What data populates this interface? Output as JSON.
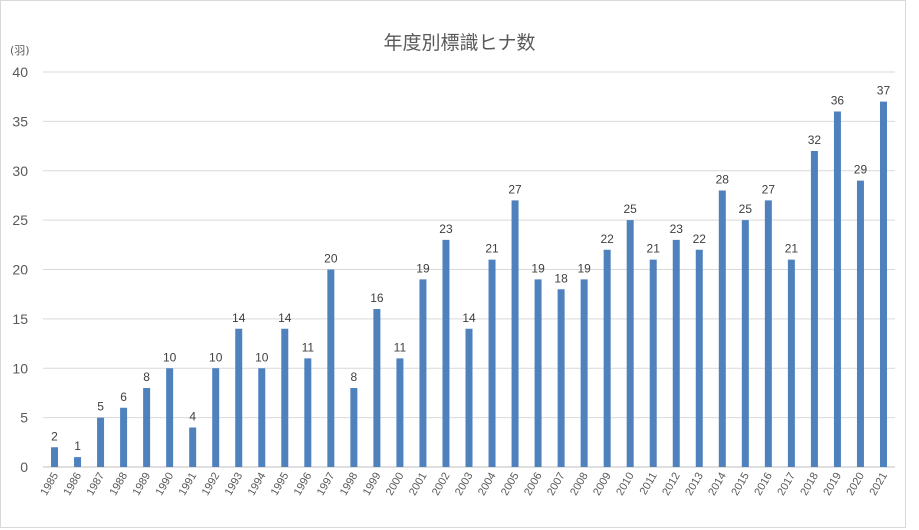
{
  "chart_data": {
    "type": "bar",
    "title": "年度別標識ヒナ数",
    "ylabel": "(羽)",
    "xlabel": "",
    "ylim": [
      0,
      40
    ],
    "yticks": [
      0,
      5,
      10,
      15,
      20,
      25,
      30,
      35,
      40
    ],
    "grid": true,
    "bar_color": "#4f81bd",
    "categories": [
      "1985",
      "1986",
      "1987",
      "1988",
      "1989",
      "1990",
      "1991",
      "1992",
      "1993",
      "1994",
      "1995",
      "1996",
      "1997",
      "1998",
      "1999",
      "2000",
      "2001",
      "2002",
      "2003",
      "2004",
      "2005",
      "2006",
      "2007",
      "2008",
      "2009",
      "2010",
      "2011",
      "2012",
      "2013",
      "2014",
      "2015",
      "2016",
      "2017",
      "2018",
      "2019",
      "2020",
      "2021"
    ],
    "values": [
      2,
      1,
      5,
      6,
      8,
      10,
      4,
      10,
      14,
      10,
      14,
      11,
      20,
      8,
      16,
      11,
      19,
      23,
      14,
      21,
      27,
      19,
      18,
      19,
      22,
      25,
      21,
      23,
      22,
      28,
      25,
      27,
      21,
      32,
      36,
      29,
      37
    ]
  }
}
